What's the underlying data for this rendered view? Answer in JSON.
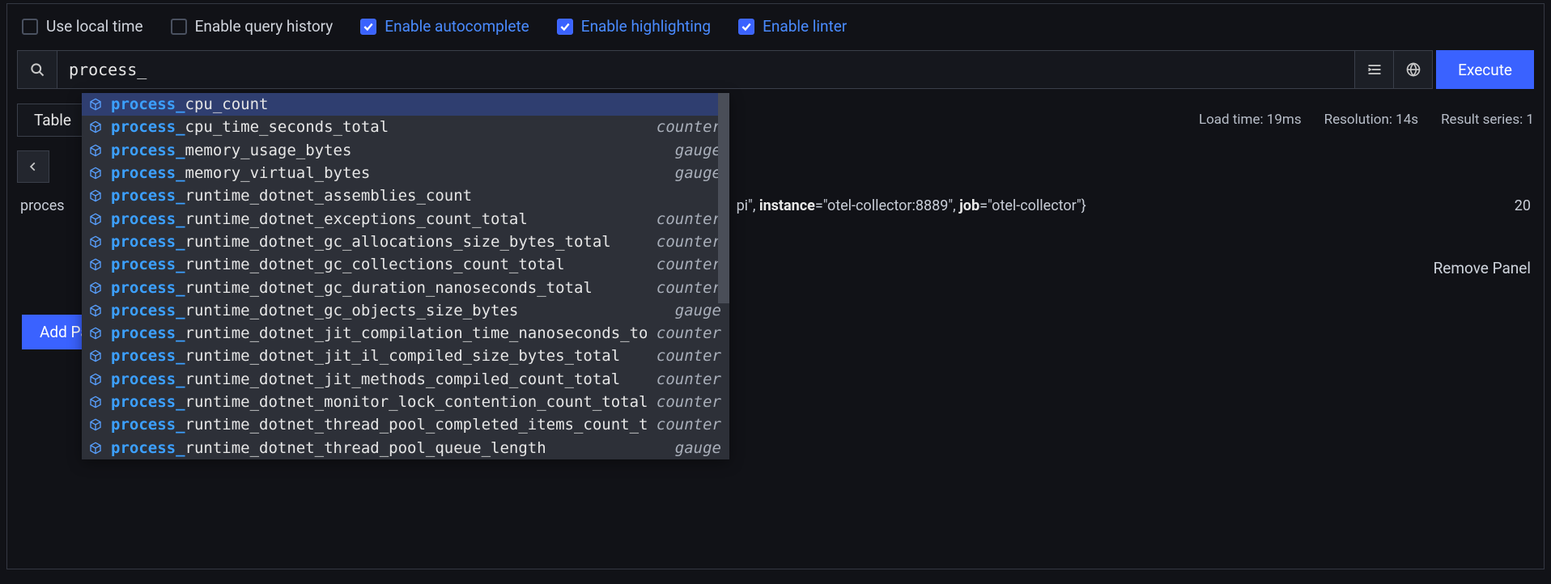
{
  "options": [
    {
      "id": "local-time",
      "label": "Use local time",
      "checked": false,
      "active": false
    },
    {
      "id": "history",
      "label": "Enable query history",
      "checked": false,
      "active": false
    },
    {
      "id": "autocomplete",
      "label": "Enable autocomplete",
      "checked": true,
      "active": true
    },
    {
      "id": "highlighting",
      "label": "Enable highlighting",
      "checked": true,
      "active": true
    },
    {
      "id": "linter",
      "label": "Enable linter",
      "checked": true,
      "active": true
    }
  ],
  "query": {
    "value": "process_"
  },
  "buttons": {
    "execute": "Execute",
    "table_tab": "Table",
    "remove_panel": "Remove Panel",
    "add_panel": "Add Panel"
  },
  "stats": {
    "load_time": "Load time: 19ms",
    "resolution": "Resolution: 14s",
    "series": "Result series: 1"
  },
  "result": {
    "prefix_visible": "proces",
    "tail": "pi\", ",
    "labels": [
      {
        "k": "instance",
        "v": "\"otel-collector:8889\""
      },
      {
        "k": "job",
        "v": "\"otel-collector\""
      }
    ],
    "close": "}",
    "value": "20"
  },
  "autocomplete": {
    "prefix": "process_",
    "items": [
      {
        "rest": "cpu_count",
        "type": "",
        "selected": true
      },
      {
        "rest": "cpu_time_seconds_total",
        "type": "counter",
        "selected": false
      },
      {
        "rest": "memory_usage_bytes",
        "type": "gauge",
        "selected": false
      },
      {
        "rest": "memory_virtual_bytes",
        "type": "gauge",
        "selected": false
      },
      {
        "rest": "runtime_dotnet_assemblies_count",
        "type": "",
        "selected": false
      },
      {
        "rest": "runtime_dotnet_exceptions_count_total",
        "type": "counter",
        "selected": false
      },
      {
        "rest": "runtime_dotnet_gc_allocations_size_bytes_total",
        "type": "counter",
        "selected": false
      },
      {
        "rest": "runtime_dotnet_gc_collections_count_total",
        "type": "counter",
        "selected": false
      },
      {
        "rest": "runtime_dotnet_gc_duration_nanoseconds_total",
        "type": "counter",
        "selected": false
      },
      {
        "rest": "runtime_dotnet_gc_objects_size_bytes",
        "type": "gauge",
        "selected": false
      },
      {
        "rest": "runtime_dotnet_jit_compilation_time_nanoseconds_total",
        "type": "counter",
        "selected": false
      },
      {
        "rest": "runtime_dotnet_jit_il_compiled_size_bytes_total",
        "type": "counter",
        "selected": false
      },
      {
        "rest": "runtime_dotnet_jit_methods_compiled_count_total",
        "type": "counter",
        "selected": false
      },
      {
        "rest": "runtime_dotnet_monitor_lock_contention_count_total",
        "type": "counter",
        "selected": false
      },
      {
        "rest": "runtime_dotnet_thread_pool_completed_items_count_total",
        "type": "counter",
        "selected": false
      },
      {
        "rest": "runtime_dotnet_thread_pool_queue_length",
        "type": "gauge",
        "selected": false
      }
    ]
  },
  "colors": {
    "accent_blue": "#3a62ff",
    "link_blue": "#4a8bff",
    "cube_blue": "#58a0ff",
    "bg": "#111217",
    "panel_bg": "#15171d",
    "dropdown_bg": "#2d3038",
    "selected_bg": "#2f3e70",
    "border": "#3a3f4a"
  }
}
